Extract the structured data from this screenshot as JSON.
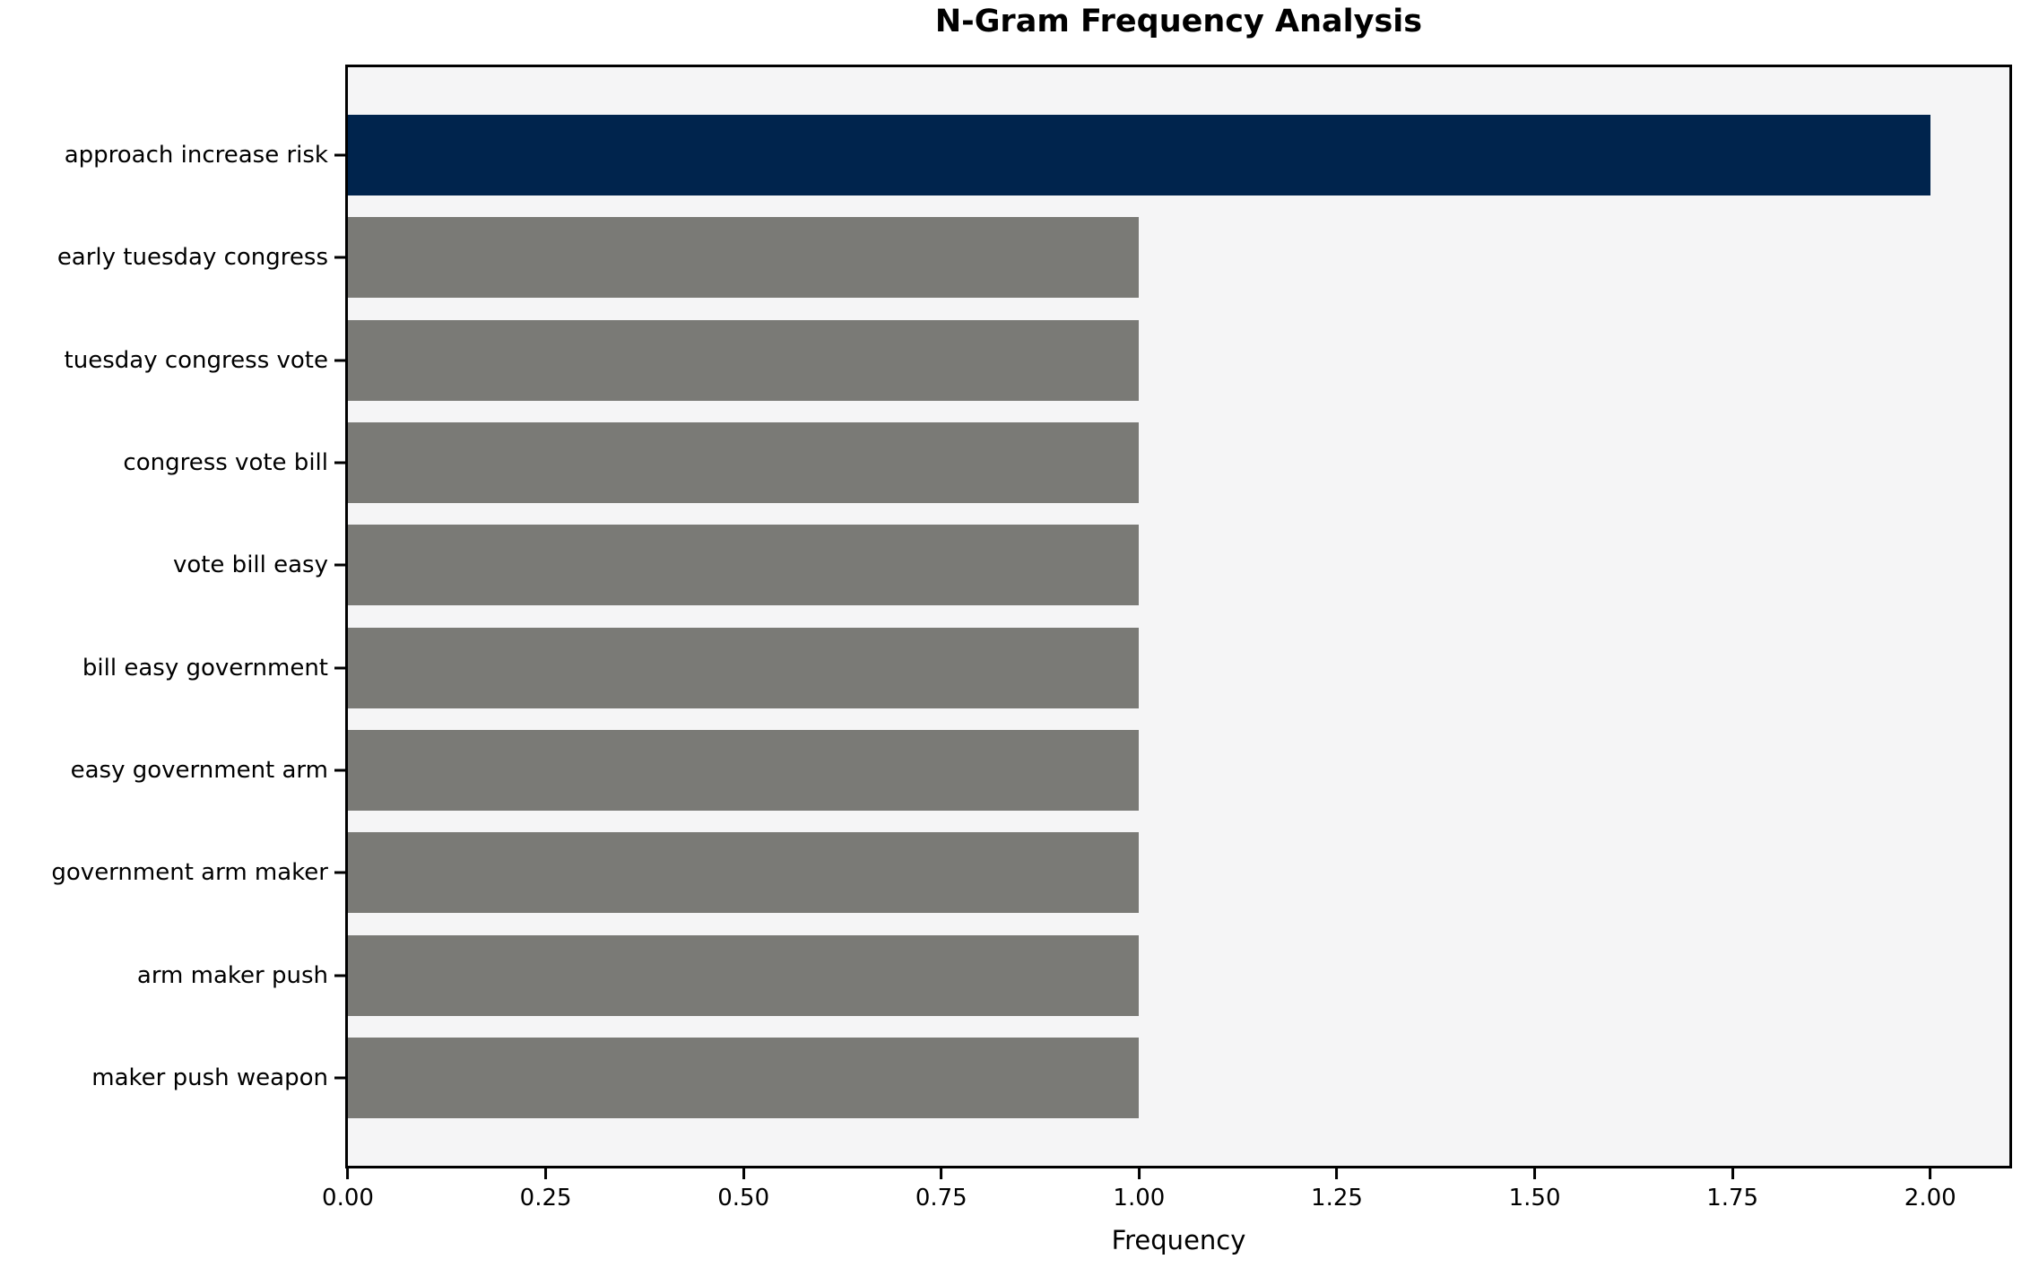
{
  "chart": {
    "title": "N-Gram Frequency Analysis",
    "xlabel": "Frequency"
  },
  "chart_data": {
    "type": "bar",
    "orientation": "horizontal",
    "title": "N-Gram Frequency Analysis",
    "xlabel": "Frequency",
    "ylabel": "",
    "categories": [
      "approach increase risk",
      "early tuesday congress",
      "tuesday congress vote",
      "congress vote bill",
      "vote bill easy",
      "bill easy government",
      "easy government arm",
      "government arm maker",
      "arm maker push",
      "maker push weapon"
    ],
    "values": [
      2,
      1,
      1,
      1,
      1,
      1,
      1,
      1,
      1,
      1
    ],
    "bar_colors": [
      "#00244d",
      "#7a7a76",
      "#7a7a76",
      "#7a7a76",
      "#7a7a76",
      "#7a7a76",
      "#7a7a76",
      "#7a7a76",
      "#7a7a76",
      "#7a7a76"
    ],
    "xlim": [
      0,
      2.1
    ],
    "xticks": [
      {
        "value": 0.0,
        "label": "0.00"
      },
      {
        "value": 0.25,
        "label": "0.25"
      },
      {
        "value": 0.5,
        "label": "0.50"
      },
      {
        "value": 0.75,
        "label": "0.75"
      },
      {
        "value": 1.0,
        "label": "1.00"
      },
      {
        "value": 1.25,
        "label": "1.25"
      },
      {
        "value": 1.5,
        "label": "1.50"
      },
      {
        "value": 1.75,
        "label": "1.75"
      },
      {
        "value": 2.0,
        "label": "2.00"
      }
    ],
    "grid": false,
    "legend": "none",
    "colors": {
      "highlight_bar": "#00244d",
      "default_bar": "#7a7a76",
      "plot_background": "#f5f5f6",
      "figure_background": "#ffffff",
      "axis": "#000000"
    }
  }
}
